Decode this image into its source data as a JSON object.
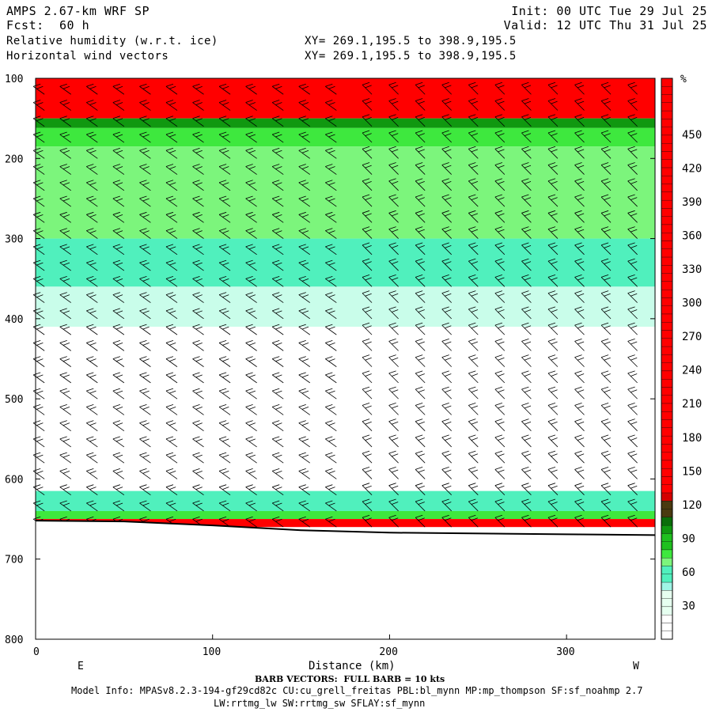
{
  "header": {
    "model": "AMPS 2.67-km WRF SP",
    "fcst_label": "Fcst:",
    "fcst_value": "60 h",
    "field1": "Relative humidity (w.r.t. ice)",
    "field2": "Horizontal wind vectors",
    "xy1": "XY= 269.1,195.5 to 398.9,195.5",
    "xy2": "XY= 269.1,195.5 to 398.9,195.5",
    "init": "Init: 00 UTC Tue 29 Jul 25",
    "valid": "Valid: 12 UTC Thu 31 Jul 25"
  },
  "footer": {
    "barb_note": "BARB VECTORS:  FULL BARB = 10 kts",
    "model_info": "Model Info: MPASv8.2.3-194-gf29cd82c CU:cu_grell_freitas PBL:bl_mynn MP:mp_thompson SF:sf_noahmp 2.7",
    "model_info2": "LW:rrtmg_lw SW:rrtmg_sw SFLAY:sf_mynn"
  },
  "chart_data": {
    "type": "heatmap",
    "xlabel": "Distance (km)",
    "ylabel": "",
    "xlim": [
      0,
      350
    ],
    "ylim": [
      800,
      100
    ],
    "x_ticks": [
      0,
      100,
      200,
      300
    ],
    "y_ticks": [
      100,
      200,
      300,
      400,
      500,
      600,
      700,
      800
    ],
    "x_end_labels": [
      "E",
      "W"
    ],
    "colorbar_unit": "%",
    "colorbar_ticks": [
      30,
      60,
      90,
      120,
      150,
      180,
      210,
      240,
      270,
      300,
      330,
      360,
      390,
      420,
      450
    ],
    "colorbar_colors": [
      "#ffffff",
      "#ffffff",
      "#e6fff0",
      "#c9fdea",
      "#9ff5e6",
      "#50f0bd",
      "#7cf57c",
      "#3ee83e",
      "#1fc01f",
      "#109810",
      "#0a6e0a",
      "#4a3a10",
      "#d40000",
      "#ff0000",
      "#ff0000",
      "#ff0000",
      "#ff0000",
      "#ff0000",
      "#ff0000",
      "#ff0000",
      "#ff0000",
      "#ff0000",
      "#ff0000",
      "#ff0000",
      "#ff0000",
      "#ff0000",
      "#ff0000",
      "#ff0000",
      "#ff0000",
      "#ff0000",
      "#ff0000",
      "#ff0000",
      "#ff0000",
      "#ff0000",
      "#ff0000",
      "#ff0000",
      "#ff0000",
      "#ff0000",
      "#ff0000",
      "#ff0000",
      "#ff0000",
      "#ff0000",
      "#ff0000",
      "#ff0000",
      "#ff0000",
      "#ff0000",
      "#ff0000",
      "#ff0000",
      "#ff0000",
      "#ff0000",
      "#ff0000",
      "#ff0000",
      "#ff0000",
      "#ff0000",
      "#ff0000"
    ],
    "rh_profile_bands": [
      {
        "p_top": 100,
        "p_bot": 150,
        "color": "#ff0000"
      },
      {
        "p_top": 150,
        "p_bot": 162,
        "color": "#109810"
      },
      {
        "p_top": 162,
        "p_bot": 185,
        "color": "#3ee83e"
      },
      {
        "p_top": 185,
        "p_bot": 300,
        "color": "#7cf57c"
      },
      {
        "p_top": 300,
        "p_bot": 360,
        "color": "#50f0bd"
      },
      {
        "p_top": 360,
        "p_bot": 410,
        "color": "#c9fdea"
      },
      {
        "p_top": 410,
        "p_bot": 615,
        "color": "#ffffff"
      },
      {
        "p_top": 615,
        "p_bot": 640,
        "color": "#50f0bd"
      },
      {
        "p_top": 640,
        "p_bot": 650,
        "color": "#3ee83e"
      },
      {
        "p_top": 650,
        "p_bot": 660,
        "color": "#ff0000"
      }
    ],
    "surface_pressure": [
      {
        "x": 0,
        "p": 652
      },
      {
        "x": 50,
        "p": 653
      },
      {
        "x": 100,
        "p": 658
      },
      {
        "x": 150,
        "p": 664
      },
      {
        "x": 200,
        "p": 667
      },
      {
        "x": 300,
        "p": 669
      },
      {
        "x": 350,
        "p": 670
      }
    ],
    "barb_x": [
      5,
      20,
      35,
      50,
      65,
      80,
      95,
      110,
      125,
      140,
      155,
      170,
      190,
      205,
      220,
      235,
      250,
      265,
      280,
      295,
      310,
      325,
      340
    ],
    "barb_p": [
      120,
      140,
      160,
      180,
      200,
      220,
      240,
      260,
      280,
      300,
      320,
      340,
      360,
      380,
      400,
      420,
      440,
      460,
      480,
      500,
      520,
      540,
      560,
      580,
      600,
      620,
      640,
      660
    ],
    "barb_note_kts": 10
  }
}
